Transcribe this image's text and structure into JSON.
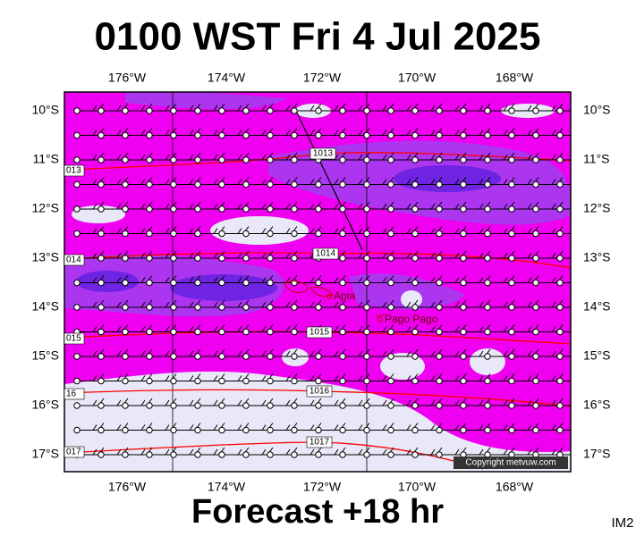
{
  "title": "0100 WST Fri 4 Jul 2025",
  "footer": "Forecast +18 hr",
  "corner": "IM2",
  "copyright": "Copyright metvuw.com",
  "longitude_labels": [
    "176°W",
    "174°W",
    "172°W",
    "170°W",
    "168°W"
  ],
  "latitude_labels": [
    "10°S",
    "11°S",
    "12°S",
    "13°S",
    "14°S",
    "15°S",
    "16°S",
    "17°S"
  ],
  "isobar_labels": [
    "1013",
    "1014",
    "1015",
    "1016",
    "1017"
  ],
  "isobar_edge_labels": [
    "013",
    "014",
    "015",
    "16",
    "017"
  ],
  "places": [
    "Apia",
    "Pago Pago"
  ]
}
